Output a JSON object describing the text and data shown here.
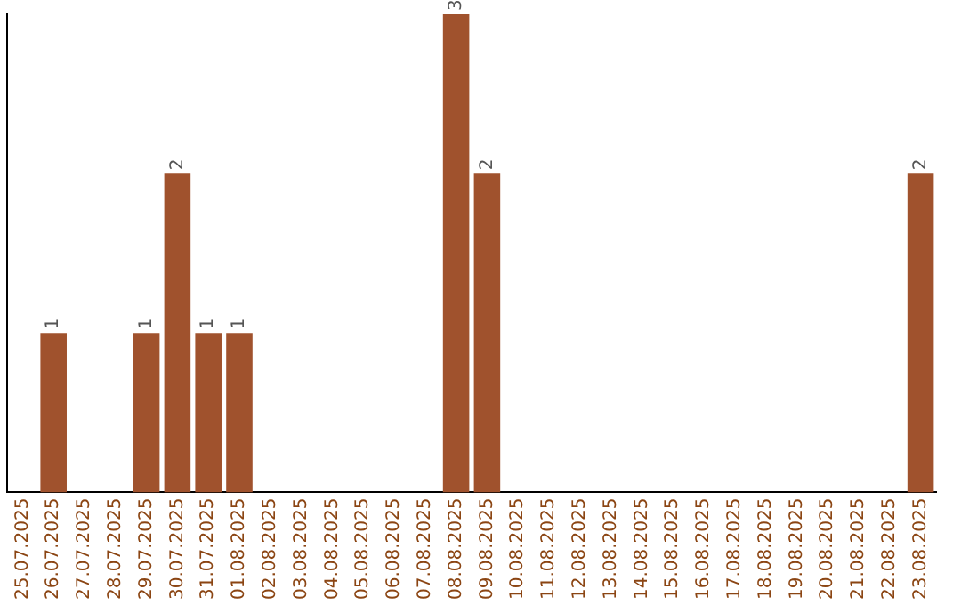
{
  "chart_data": {
    "type": "bar",
    "categories": [
      "25.07.2025",
      "26.07.2025",
      "27.07.2025",
      "28.07.2025",
      "29.07.2025",
      "30.07.2025",
      "31.07.2025",
      "01.08.2025",
      "02.08.2025",
      "03.08.2025",
      "04.08.2025",
      "05.08.2025",
      "06.08.2025",
      "07.08.2025",
      "08.08.2025",
      "09.08.2025",
      "10.08.2025",
      "11.08.2025",
      "12.08.2025",
      "13.08.2025",
      "14.08.2025",
      "15.08.2025",
      "16.08.2025",
      "17.08.2025",
      "18.08.2025",
      "19.08.2025",
      "20.08.2025",
      "21.08.2025",
      "22.08.2025",
      "23.08.2025"
    ],
    "values": [
      0,
      1,
      0,
      0,
      1,
      2,
      1,
      1,
      0,
      0,
      0,
      0,
      0,
      0,
      3,
      2,
      0,
      0,
      0,
      0,
      0,
      0,
      0,
      0,
      0,
      0,
      0,
      0,
      0,
      2
    ],
    "value_labels": [
      null,
      "1",
      null,
      null,
      "1",
      "2",
      "1",
      "1",
      null,
      null,
      null,
      null,
      null,
      null,
      "3",
      "2",
      null,
      null,
      null,
      null,
      null,
      null,
      null,
      null,
      null,
      null,
      null,
      null,
      null,
      "2"
    ],
    "color": "#a0522d",
    "grid": false,
    "legend": false,
    "tick_labels": "x"
  }
}
